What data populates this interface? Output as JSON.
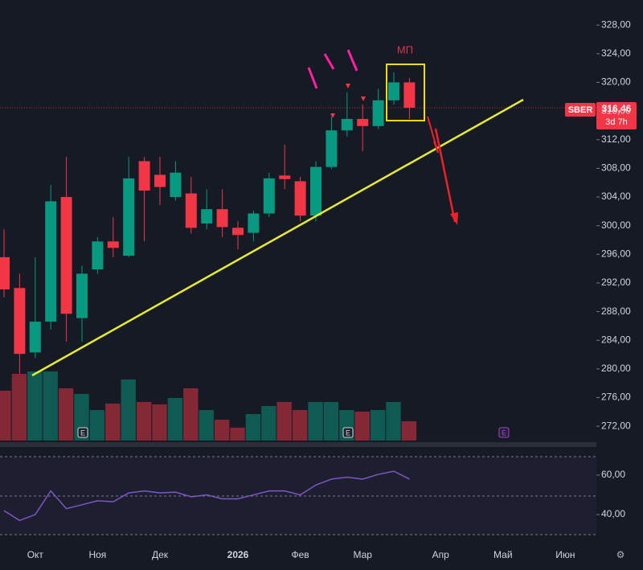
{
  "chart_data": {
    "type": "candlestick",
    "ticker": "SBER",
    "last_price": {
      "value": 316.46,
      "label": "316,46"
    },
    "countdown": "3d 7h",
    "annotation": "МП",
    "event_marker": "E",
    "categories": [
      null,
      null,
      "Окт",
      null,
      null,
      null,
      "Ноя",
      null,
      null,
      null,
      "Дек",
      null,
      null,
      null,
      null,
      "2026",
      null,
      null,
      null,
      "Фев",
      null,
      null,
      null,
      "Мар",
      null,
      null,
      null,
      null,
      "Апр",
      null,
      null,
      null,
      "Май",
      null,
      null,
      null,
      "Июн"
    ],
    "open": [
      295.6,
      291.3,
      282.3,
      286.6,
      304.0,
      287.1,
      293.9,
      297.8,
      295.8,
      309.0,
      307.1,
      304.0,
      304.5,
      300.3,
      302.3,
      299.7,
      299.0,
      301.7,
      307.0,
      306.2,
      301.4,
      308.2,
      313.3,
      314.9,
      313.9,
      317.5,
      320.0,
      null,
      null,
      null,
      null,
      null,
      null,
      null,
      null,
      null,
      null
    ],
    "high": [
      299.5,
      293.3,
      295.6,
      305.7,
      309.6,
      294.4,
      298.4,
      301.2,
      309.6,
      309.6,
      309.6,
      309.0,
      306.8,
      305.1,
      305.1,
      300.6,
      302.1,
      307.4,
      311.3,
      306.8,
      309.0,
      315.2,
      318.6,
      316.9,
      319.1,
      321.4,
      320.6,
      null,
      null,
      null,
      null,
      null,
      null,
      null,
      null,
      null,
      null
    ],
    "low": [
      290.0,
      279.3,
      281.5,
      285.5,
      283.8,
      283.8,
      293.3,
      295.6,
      295.6,
      297.8,
      302.9,
      303.5,
      298.9,
      299.5,
      298.4,
      296.7,
      297.8,
      301.2,
      305.1,
      300.6,
      300.6,
      307.9,
      312.4,
      310.4,
      313.5,
      316.9,
      314.9,
      null,
      null,
      null,
      null,
      null,
      null,
      null,
      null,
      null,
      null
    ],
    "close": [
      291.1,
      282.1,
      286.6,
      303.4,
      287.7,
      293.3,
      297.8,
      296.9,
      306.6,
      304.9,
      305.4,
      307.4,
      299.7,
      302.3,
      299.8,
      298.7,
      301.7,
      306.6,
      306.5,
      301.4,
      308.2,
      313.3,
      314.9,
      313.9,
      317.5,
      320.0,
      316.46,
      null,
      null,
      null,
      null,
      null,
      null,
      null,
      null,
      null,
      null
    ],
    "volume": [
      62,
      83,
      86,
      86,
      65,
      58,
      38,
      46,
      76,
      48,
      45,
      53,
      65,
      38,
      26,
      16,
      33,
      43,
      48,
      38,
      48,
      48,
      38,
      36,
      38,
      48,
      24,
      null,
      null,
      null,
      null,
      null,
      null,
      null,
      null,
      null,
      null
    ],
    "rsi": [
      42,
      37,
      40,
      52,
      43,
      45,
      47,
      46.5,
      51,
      52,
      51,
      51.4,
      49,
      50,
      48,
      48,
      50,
      52,
      52,
      50,
      55,
      58,
      59,
      58,
      60.4,
      62,
      58,
      null,
      null,
      null,
      null,
      null,
      null,
      null,
      null,
      null,
      null
    ],
    "up_color": "#089981",
    "down_color": "#f23645",
    "rsi_color": "#7e57c2",
    "ylim": [
      270,
      331.5
    ],
    "yticks": [
      {
        "value": 272,
        "label": "272,00"
      },
      {
        "value": 276,
        "label": "276,00"
      },
      {
        "value": 280,
        "label": "280,00"
      },
      {
        "value": 284,
        "label": "284,00"
      },
      {
        "value": 288,
        "label": "288,00"
      },
      {
        "value": 292,
        "label": "292,00"
      },
      {
        "value": 296,
        "label": "296,00"
      },
      {
        "value": 300,
        "label": "300,00"
      },
      {
        "value": 304,
        "label": "304,00"
      },
      {
        "value": 308,
        "label": "308,00"
      },
      {
        "value": 312,
        "label": "312,00"
      },
      {
        "value": 316,
        "label": "316,00"
      },
      {
        "value": 320,
        "label": "320,00"
      },
      {
        "value": 324,
        "label": "324,00"
      },
      {
        "value": 328,
        "label": "328,00"
      }
    ],
    "rsi_ylim": [
      28.6,
      69.4
    ],
    "rsi_yticks": [
      {
        "value": 40,
        "label": "40,00"
      },
      {
        "value": 60,
        "label": "60,00"
      }
    ]
  }
}
